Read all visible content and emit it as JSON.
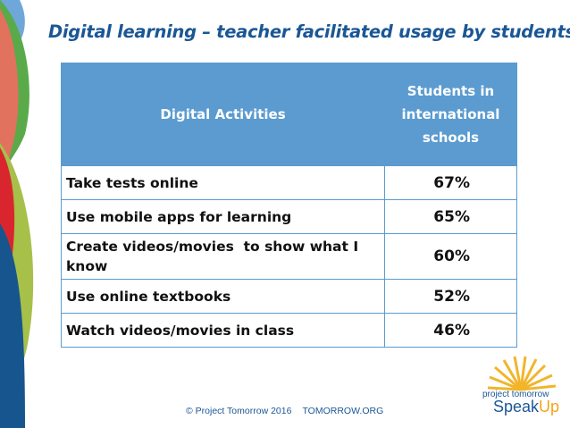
{
  "title": "Digital learning – teacher facilitated usage by students",
  "table": {
    "headers": [
      "Digital Activities",
      "Students in international schools"
    ],
    "rows": [
      {
        "activity": "Take tests online",
        "value": "67%"
      },
      {
        "activity": "Use mobile apps for learning",
        "value": "65%"
      },
      {
        "activity": "Create videos/movies  to show what I know",
        "value": "60%"
      },
      {
        "activity": "Use online textbooks",
        "value": "52%"
      },
      {
        "activity": "Watch videos/movies in class",
        "value": "46%"
      }
    ]
  },
  "footer": {
    "copyright": "© Project Tomorrow 2016",
    "site": "TOMORROW.ORG"
  },
  "logo": {
    "line1": "project tomorrow",
    "speak": "Speak",
    "up": "Up"
  },
  "colors": {
    "header": "#5b9bd0",
    "title": "#1b5795",
    "sun": "#f2b52a"
  }
}
